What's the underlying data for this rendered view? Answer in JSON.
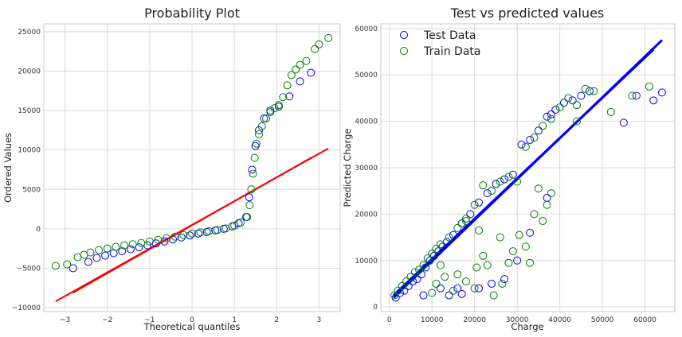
{
  "chart_data": [
    {
      "type": "scatter",
      "title": "Probability Plot",
      "xlabel": "Theoretical quantiles",
      "ylabel": "Ordered Values",
      "xlim": [
        -3.5,
        3.5
      ],
      "ylim": [
        -10500,
        26000
      ],
      "xticks": [
        -3,
        -2,
        -1,
        0,
        1,
        2,
        3
      ],
      "yticks": [
        -10000,
        -5000,
        0,
        5000,
        10000,
        15000,
        20000,
        25000
      ],
      "grid": true,
      "series": [
        {
          "color": "#0000ff",
          "marker": "hollow-circle",
          "points": [
            [
              -2.81,
              -5000
            ],
            [
              -2.45,
              -4200
            ],
            [
              -2.25,
              -3700
            ],
            [
              -2.05,
              -3400
            ],
            [
              -1.85,
              -3100
            ],
            [
              -1.65,
              -2850
            ],
            [
              -1.45,
              -2600
            ],
            [
              -1.25,
              -2350
            ],
            [
              -1.05,
              -2100
            ],
            [
              -0.85,
              -1850
            ],
            [
              -0.65,
              -1600
            ],
            [
              -0.45,
              -1350
            ],
            [
              -0.25,
              -1100
            ],
            [
              -0.05,
              -850
            ],
            [
              0.15,
              -600
            ],
            [
              0.35,
              -400
            ],
            [
              0.55,
              -200
            ],
            [
              0.75,
              0
            ],
            [
              0.95,
              300
            ],
            [
              1.1,
              700
            ],
            [
              1.28,
              1500
            ],
            [
              1.35,
              4000
            ],
            [
              1.42,
              7500
            ],
            [
              1.5,
              10500
            ],
            [
              1.58,
              12500
            ],
            [
              1.7,
              14000
            ],
            [
              1.85,
              15000
            ],
            [
              2.05,
              15500
            ],
            [
              2.3,
              16800
            ],
            [
              2.55,
              18700
            ],
            [
              2.81,
              19800
            ]
          ]
        },
        {
          "color": "#008000",
          "marker": "hollow-circle",
          "points": [
            [
              -3.22,
              -4700
            ],
            [
              -2.95,
              -4500
            ],
            [
              -2.7,
              -3600
            ],
            [
              -2.55,
              -3300
            ],
            [
              -2.4,
              -3000
            ],
            [
              -2.2,
              -2700
            ],
            [
              -2.0,
              -2500
            ],
            [
              -1.8,
              -2300
            ],
            [
              -1.6,
              -2100
            ],
            [
              -1.4,
              -1950
            ],
            [
              -1.2,
              -1800
            ],
            [
              -1.0,
              -1600
            ],
            [
              -0.8,
              -1400
            ],
            [
              -0.6,
              -1200
            ],
            [
              -0.4,
              -1000
            ],
            [
              -0.2,
              -800
            ],
            [
              0.0,
              -600
            ],
            [
              0.2,
              -450
            ],
            [
              0.4,
              -300
            ],
            [
              0.6,
              -150
            ],
            [
              0.8,
              50
            ],
            [
              1.0,
              400
            ],
            [
              1.15,
              800
            ],
            [
              1.3,
              1500
            ],
            [
              1.36,
              3000
            ],
            [
              1.4,
              5000
            ],
            [
              1.44,
              7000
            ],
            [
              1.48,
              9000
            ],
            [
              1.52,
              10800
            ],
            [
              1.58,
              12000
            ],
            [
              1.65,
              13000
            ],
            [
              1.75,
              14000
            ],
            [
              1.85,
              14800
            ],
            [
              1.95,
              15300
            ],
            [
              2.05,
              15700
            ],
            [
              2.15,
              16700
            ],
            [
              2.25,
              18200
            ],
            [
              2.35,
              19500
            ],
            [
              2.45,
              20200
            ],
            [
              2.55,
              20800
            ],
            [
              2.7,
              21300
            ],
            [
              2.9,
              22800
            ],
            [
              3.0,
              23400
            ],
            [
              3.22,
              24200
            ]
          ]
        }
      ],
      "fit_lines": [
        {
          "color": "#ff0000",
          "from": [
            -3.22,
            -9200
          ],
          "to": [
            3.22,
            10200
          ]
        },
        {
          "color": "#ff0000",
          "from": [
            -2.81,
            -8100
          ],
          "to": [
            2.81,
            9000
          ]
        }
      ]
    },
    {
      "type": "scatter",
      "title": "Test vs predicted values",
      "xlabel": "Charge",
      "ylabel": "Predicted Charge",
      "xlim": [
        -2000,
        67000
      ],
      "ylim": [
        -1000,
        61000
      ],
      "xticks": [
        0,
        10000,
        20000,
        30000,
        40000,
        50000,
        60000
      ],
      "yticks": [
        0,
        10000,
        20000,
        30000,
        40000,
        50000,
        60000
      ],
      "grid": true,
      "legend": {
        "position": "top-left",
        "entries": [
          "Test Data",
          "Train Data"
        ]
      },
      "series": [
        {
          "name": "Test Data",
          "color": "#0000ff",
          "marker": "hollow-circle",
          "points": [
            [
              1500,
              2000
            ],
            [
              2500,
              3000
            ],
            [
              3500,
              3500
            ],
            [
              4500,
              4500
            ],
            [
              5500,
              5500
            ],
            [
              6500,
              6000
            ],
            [
              7500,
              7000
            ],
            [
              8500,
              8500
            ],
            [
              9500,
              10000
            ],
            [
              10500,
              11000
            ],
            [
              11500,
              12000
            ],
            [
              12500,
              13000
            ],
            [
              13500,
              14000
            ],
            [
              15000,
              15500
            ],
            [
              17000,
              18000
            ],
            [
              19000,
              20000
            ],
            [
              21000,
              22500
            ],
            [
              23000,
              24500
            ],
            [
              25000,
              26500
            ],
            [
              27000,
              27500
            ],
            [
              29000,
              28500
            ],
            [
              31000,
              35000
            ],
            [
              33000,
              36000
            ],
            [
              35000,
              38000
            ],
            [
              37000,
              41000
            ],
            [
              39000,
              42500
            ],
            [
              41000,
              44000
            ],
            [
              43000,
              44500
            ],
            [
              45000,
              45500
            ],
            [
              47000,
              46500
            ],
            [
              8000,
              2500
            ],
            [
              12000,
              4000
            ],
            [
              14000,
              2500
            ],
            [
              16000,
              4000
            ],
            [
              17000,
              2800
            ],
            [
              21000,
              4000
            ],
            [
              24000,
              5000
            ],
            [
              27000,
              6000
            ],
            [
              30000,
              10000
            ],
            [
              33000,
              16000
            ],
            [
              37000,
              23500
            ],
            [
              38000,
              41500
            ],
            [
              55000,
              39700
            ],
            [
              58000,
              45500
            ],
            [
              62000,
              44500
            ],
            [
              64000,
              46200
            ]
          ]
        },
        {
          "name": "Train Data",
          "color": "#008000",
          "marker": "hollow-circle",
          "points": [
            [
              1200,
              2500
            ],
            [
              2000,
              3500
            ],
            [
              3000,
              4500
            ],
            [
              4000,
              5500
            ],
            [
              5000,
              6500
            ],
            [
              6000,
              7500
            ],
            [
              7000,
              8000
            ],
            [
              8000,
              9000
            ],
            [
              9000,
              10500
            ],
            [
              10000,
              11500
            ],
            [
              11000,
              12500
            ],
            [
              12000,
              13500
            ],
            [
              14000,
              15000
            ],
            [
              16000,
              17000
            ],
            [
              18000,
              19000
            ],
            [
              20000,
              22000
            ],
            [
              22000,
              26200
            ],
            [
              24000,
              25000
            ],
            [
              26000,
              27000
            ],
            [
              28000,
              28000
            ],
            [
              30000,
              27000
            ],
            [
              32000,
              34500
            ],
            [
              34000,
              36500
            ],
            [
              36000,
              39000
            ],
            [
              38000,
              40500
            ],
            [
              40000,
              43000
            ],
            [
              42000,
              45000
            ],
            [
              44000,
              43500
            ],
            [
              46000,
              47000
            ],
            [
              48000,
              46500
            ],
            [
              10000,
              3000
            ],
            [
              11000,
              5000
            ],
            [
              13000,
              6500
            ],
            [
              15000,
              3500
            ],
            [
              18000,
              5500
            ],
            [
              20000,
              4000
            ],
            [
              20500,
              8500
            ],
            [
              22000,
              11000
            ],
            [
              23000,
              9000
            ],
            [
              24500,
              2500
            ],
            [
              26000,
              15000
            ],
            [
              26500,
              5000
            ],
            [
              28000,
              9500
            ],
            [
              29000,
              12000
            ],
            [
              30500,
              15500
            ],
            [
              32000,
              13000
            ],
            [
              33000,
              9500
            ],
            [
              34000,
              20000
            ],
            [
              35000,
              25500
            ],
            [
              36000,
              18500
            ],
            [
              37000,
              22000
            ],
            [
              38000,
              24500
            ],
            [
              44000,
              40000
            ],
            [
              52000,
              42000
            ],
            [
              57000,
              45500
            ],
            [
              61000,
              47500
            ],
            [
              18000,
              18500
            ],
            [
              21000,
              16500
            ],
            [
              16000,
              7000
            ],
            [
              12000,
              9000
            ]
          ]
        }
      ],
      "fit_lines": [
        {
          "color": "#0000ff",
          "from": [
            1000,
            2000
          ],
          "to": [
            64000,
            57500
          ]
        },
        {
          "color": "#0000ff",
          "from": [
            1000,
            2500
          ],
          "to": [
            62000,
            55500
          ]
        }
      ]
    }
  ]
}
